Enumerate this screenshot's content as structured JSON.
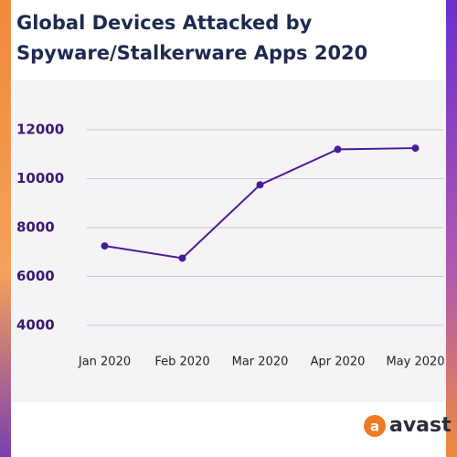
{
  "chart_data": {
    "type": "line",
    "title_lines": [
      "Global Devices Attacked by",
      "Spyware/Stalkerware Apps 2020"
    ],
    "categories": [
      "Jan 2020",
      "Feb 2020",
      "Mar 2020",
      "Apr 2020",
      "May 2020"
    ],
    "values": [
      7250,
      6750,
      9750,
      11200,
      11250
    ],
    "color": "#4a1a98",
    "ylim": [
      4000,
      12000
    ],
    "yticks": [
      4000,
      6000,
      8000,
      10000,
      12000
    ],
    "grid": true,
    "brand": "avast"
  }
}
